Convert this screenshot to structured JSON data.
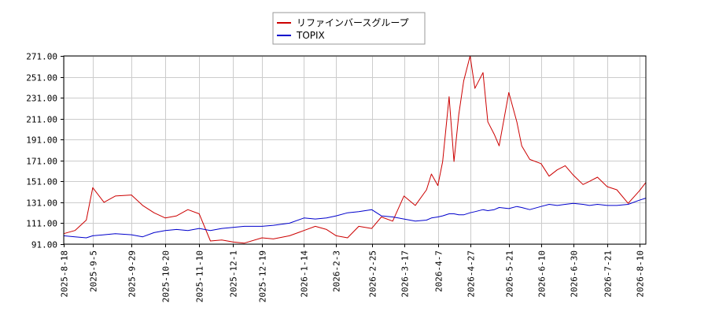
{
  "chart_data": {
    "type": "line",
    "title": "",
    "xlabel": "",
    "ylabel": "",
    "grid": true,
    "legend_position": "top-center",
    "ylim": [
      91,
      271
    ],
    "y_ticks": [
      "271.00",
      "251.00",
      "231.00",
      "211.00",
      "191.00",
      "171.00",
      "151.00",
      "131.00",
      "111.00",
      "91.00"
    ],
    "x_ticks": [
      "2025-8-18",
      "2025-9-5",
      "2025-9-29",
      "2025-10-20",
      "2025-11-10",
      "2025-12-1",
      "2025-12-19",
      "2026-1-14",
      "2026-2-3",
      "2026-2-25",
      "2026-3-17",
      "2026-4-7",
      "2026-4-27",
      "2026-5-21",
      "2026-6-10",
      "2026-6-30",
      "2026-7-21",
      "2026-8-10"
    ],
    "x": [
      "2025-8-18",
      "2025-8-25",
      "2025-9-1",
      "2025-9-5",
      "2025-9-12",
      "2025-9-19",
      "2025-9-29",
      "2025-10-6",
      "2025-10-13",
      "2025-10-20",
      "2025-10-27",
      "2025-11-3",
      "2025-11-10",
      "2025-11-17",
      "2025-11-24",
      "2025-12-1",
      "2025-12-8",
      "2025-12-19",
      "2025-12-26",
      "2026-1-5",
      "2026-1-14",
      "2026-1-21",
      "2026-1-28",
      "2026-2-3",
      "2026-2-10",
      "2026-2-17",
      "2026-2-25",
      "2026-3-3",
      "2026-3-10",
      "2026-3-17",
      "2026-3-24",
      "2026-3-31",
      "2026-4-3",
      "2026-4-7",
      "2026-4-10",
      "2026-4-14",
      "2026-4-17",
      "2026-4-20",
      "2026-4-23",
      "2026-4-27",
      "2026-4-30",
      "2026-5-5",
      "2026-5-8",
      "2026-5-12",
      "2026-5-15",
      "2026-5-21",
      "2026-5-26",
      "2026-5-29",
      "2026-6-3",
      "2026-6-10",
      "2026-6-15",
      "2026-6-20",
      "2026-6-25",
      "2026-6-30",
      "2026-7-6",
      "2026-7-10",
      "2026-7-15",
      "2026-7-21",
      "2026-7-27",
      "2026-8-3",
      "2026-8-10",
      "2026-8-14"
    ],
    "series": [
      {
        "name": "リファインバースグループ",
        "color": "#cc0000",
        "values": [
          101,
          104,
          114,
          145,
          131,
          137,
          138,
          128,
          121,
          116,
          118,
          124,
          120,
          94,
          95,
          93,
          92,
          97,
          96,
          99,
          104,
          108,
          105,
          99,
          97,
          108,
          106,
          117,
          113,
          137,
          128,
          143,
          158,
          147,
          170,
          232,
          170,
          215,
          247,
          271,
          240,
          255,
          208,
          196,
          185,
          236,
          208,
          185,
          172,
          168,
          156,
          162,
          166,
          157,
          148,
          151,
          155,
          146,
          143,
          130,
          142,
          150
        ]
      },
      {
        "name": "TOPIX",
        "color": "#0000cc",
        "values": [
          99,
          98,
          97,
          99,
          100,
          101,
          100,
          98,
          102,
          104,
          105,
          104,
          106,
          104,
          106,
          107,
          108,
          108,
          109,
          111,
          116,
          115,
          116,
          118,
          121,
          122,
          124,
          118,
          117,
          115,
          113,
          114,
          116,
          117,
          118,
          120,
          120,
          119,
          119,
          121,
          122,
          124,
          123,
          124,
          126,
          125,
          127,
          126,
          124,
          127,
          129,
          128,
          129,
          130,
          129,
          128,
          129,
          128,
          128,
          129,
          133,
          135
        ]
      }
    ]
  }
}
